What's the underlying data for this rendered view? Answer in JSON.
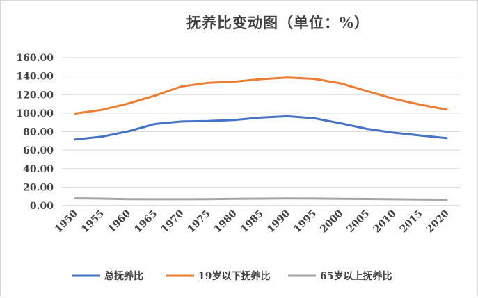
{
  "chart_data": {
    "type": "line",
    "title": "抚养比变动图（单位：%）",
    "x": [
      "1950",
      "1955",
      "1960",
      "1965",
      "1970",
      "1975",
      "1980",
      "1985",
      "1990",
      "1995",
      "2000",
      "2005",
      "2010",
      "2015",
      "2020"
    ],
    "ylim": [
      0,
      160
    ],
    "y_ticks": [
      "0.00",
      "20.00",
      "40.00",
      "60.00",
      "80.00",
      "100.00",
      "120.00",
      "140.00",
      "160.00"
    ],
    "grid": true,
    "legend_position": "bottom",
    "series": [
      {
        "name": "总抚养比",
        "color": "#4472c4",
        "values": [
          71.6,
          74.5,
          80.4,
          88.3,
          91.0,
          91.4,
          92.6,
          95.2,
          96.6,
          94.5,
          89.0,
          83.0,
          78.9,
          75.9,
          73.0
        ]
      },
      {
        "name": "19岁以下抚养比",
        "color": "#ed7d31",
        "values": [
          99.5,
          103.5,
          110.4,
          118.9,
          128.8,
          132.7,
          134.0,
          136.7,
          138.4,
          137.1,
          132.2,
          123.8,
          115.6,
          109.2,
          103.9
        ]
      },
      {
        "name": "65岁以上抚养比",
        "color": "#a5a5a5",
        "values": [
          7.8,
          7.5,
          7.0,
          6.8,
          6.8,
          7.0,
          7.3,
          7.5,
          7.7,
          7.6,
          7.3,
          7.1,
          6.8,
          6.5,
          6.3
        ]
      }
    ]
  }
}
